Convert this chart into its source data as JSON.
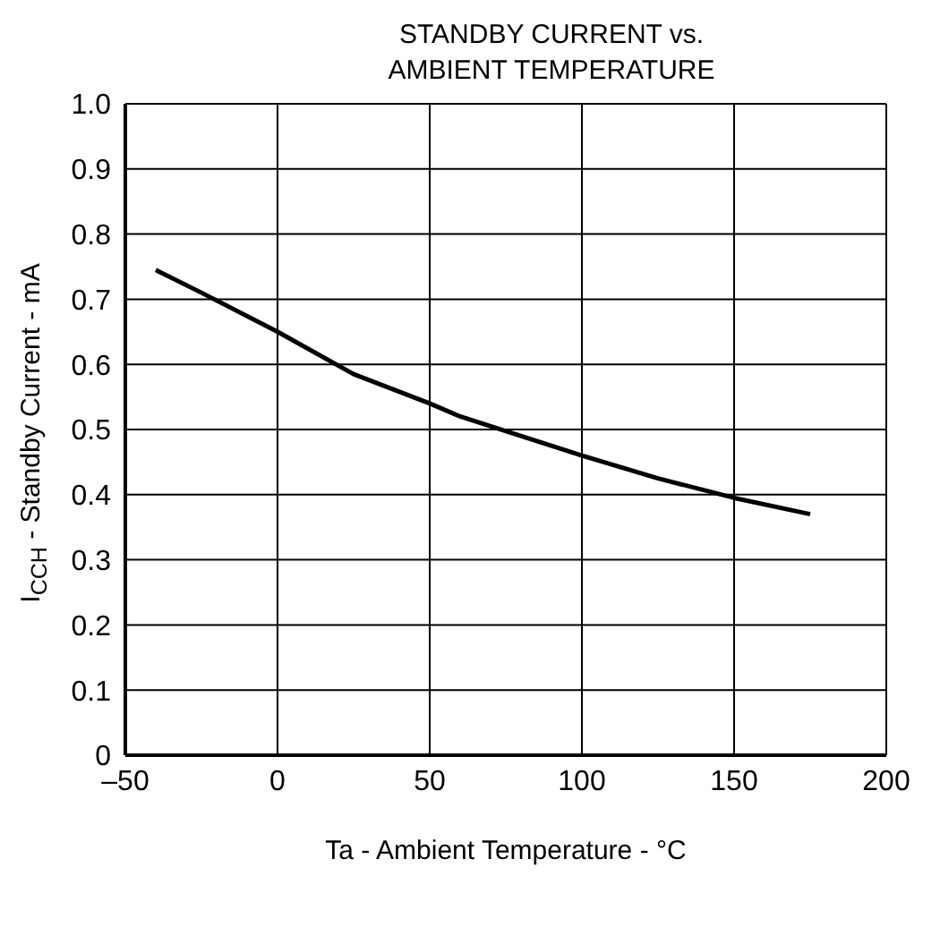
{
  "chart_data": {
    "type": "line",
    "title": "STANDBY CURRENT vs. AMBIENT TEMPERATURE",
    "xlabel": "Ta - Ambient Temperature - °C",
    "ylabel": "I$_{CCH}$ - Standby Current - mA",
    "series": [
      {
        "color": "#000000",
        "x": [
          -40,
          -25,
          0,
          25,
          50,
          60,
          100,
          125,
          150,
          175
        ],
        "values": [
          0.745,
          0.71,
          0.65,
          0.585,
          0.54,
          0.52,
          0.46,
          0.425,
          0.395,
          0.37
        ]
      }
    ],
    "xlim": [
      -50,
      200
    ],
    "xticks": [
      {
        "value": -50,
        "label": "–50"
      },
      0,
      50,
      100,
      150,
      200
    ],
    "ylim": [
      0,
      1
    ],
    "yticks": [
      0,
      0.1,
      0.2,
      0.3,
      0.4,
      0.5,
      0.6,
      0.7,
      0.8,
      0.9,
      {
        "value": 1,
        "label": "1.0"
      }
    ],
    "grid": true,
    "marker": "none",
    "line_style": "solid"
  }
}
